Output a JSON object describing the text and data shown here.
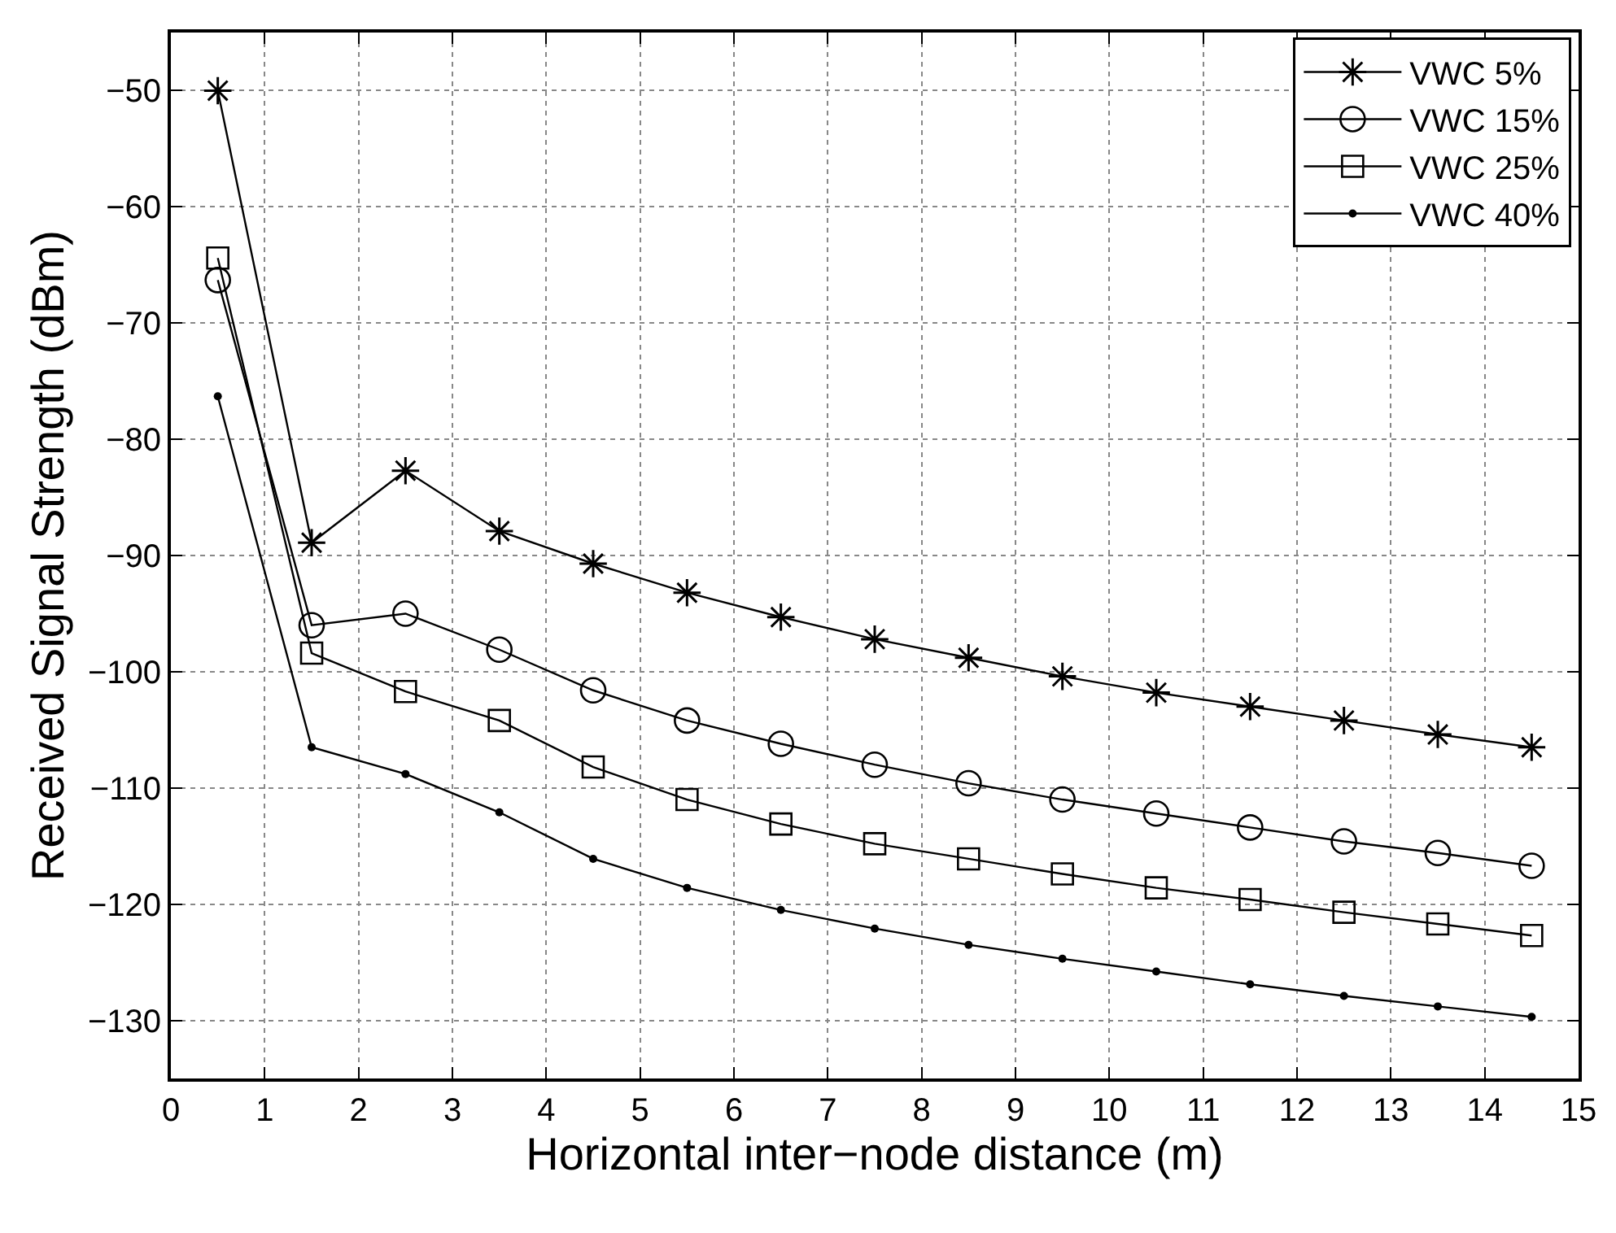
{
  "chart_data": {
    "type": "line",
    "xlabel": "Horizontal inter−node distance (m)",
    "ylabel": "Received Signal Strength (dBm)",
    "x": [
      0.5,
      1.5,
      2.5,
      3.5,
      4.5,
      5.5,
      6.5,
      7.5,
      8.5,
      9.5,
      10.5,
      11.5,
      12.5,
      13.5,
      14.5
    ],
    "series": [
      {
        "name": "VWC 5%",
        "color": "#000000",
        "marker": "cross",
        "values": [
          -50,
          -88.9,
          -82.7,
          -87.9,
          -90.7,
          -93.2,
          -95.3,
          -97.2,
          -98.8,
          -100.4,
          -101.8,
          -103.0,
          -104.2,
          -105.4,
          -106.5
        ]
      },
      {
        "name": "VWC 15%",
        "color": "#000000",
        "marker": "circle",
        "values": [
          -66.3,
          -96.0,
          -95.0,
          -98.1,
          -101.6,
          -104.2,
          -106.2,
          -108.0,
          -109.6,
          -111.0,
          -112.2,
          -113.4,
          -114.6,
          -115.6,
          -116.7
        ]
      },
      {
        "name": "VWC 25%",
        "color": "#000000",
        "marker": "square",
        "values": [
          -64.4,
          -98.4,
          -101.7,
          -104.2,
          -108.2,
          -111.0,
          -113.1,
          -114.8,
          -116.1,
          -117.4,
          -118.6,
          -119.6,
          -120.7,
          -121.7,
          -122.7
        ]
      },
      {
        "name": "VWC 40%",
        "color": "#000000",
        "marker": "dot",
        "values": [
          -76.3,
          -106.5,
          -108.8,
          -112.1,
          -116.1,
          -118.6,
          -120.5,
          -122.1,
          -123.5,
          -124.7,
          -125.8,
          -126.9,
          -127.9,
          -128.8,
          -129.7
        ]
      }
    ],
    "xlim": [
      0,
      15
    ],
    "xticks": [
      0,
      1,
      2,
      3,
      4,
      5,
      6,
      7,
      8,
      9,
      10,
      11,
      12,
      13,
      14,
      15
    ],
    "ylim": [
      -135,
      -45
    ],
    "yticks": [
      -130,
      -120,
      -110,
      -100,
      -90,
      -80,
      -70,
      -60,
      -50
    ],
    "grid": true,
    "legend": "top right",
    "line_style": "solid"
  }
}
